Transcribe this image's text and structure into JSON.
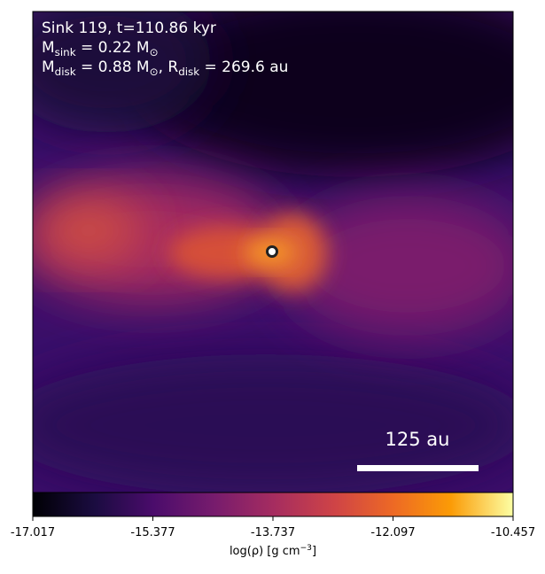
{
  "chart_data": {
    "type": "image",
    "annotation": [
      [
        {
          "text": "Sink 119, t=110.86 kyr"
        }
      ],
      [
        {
          "text": "M"
        },
        {
          "sub": "sink"
        },
        {
          "text": " = 0.22 M"
        },
        {
          "sub": "⊙"
        }
      ],
      [
        {
          "text": "M"
        },
        {
          "sub": "disk"
        },
        {
          "text": " = 0.88 M"
        },
        {
          "sub": "⊙"
        },
        {
          "text": ", R"
        },
        {
          "sub": "disk"
        },
        {
          "text": " = 269.6 au"
        }
      ]
    ],
    "scale_bar": "125 au",
    "colorbar": {
      "label": [
        {
          "text": "log(ρ) [g cm"
        },
        {
          "sup": "−3"
        },
        {
          "text": "]"
        }
      ],
      "clim": [
        -17.017,
        -10.457
      ],
      "ticks": [
        -17.017,
        -15.377,
        -13.737,
        -12.097,
        -10.457
      ],
      "colormap": "inferno"
    }
  }
}
